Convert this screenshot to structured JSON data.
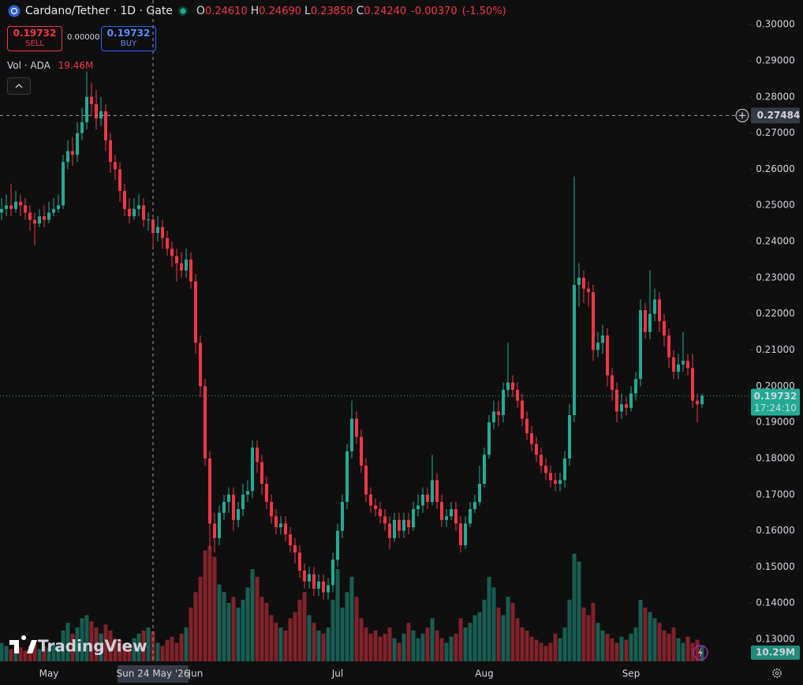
{
  "chart_data": {
    "type": "candlestick",
    "title": "Cardano/Tether · 1D · Gate",
    "legend": [
      {
        "key": "O",
        "value": 0.2461,
        "label": "0.24610"
      },
      {
        "key": "H",
        "value": 0.2469,
        "label": "0.24690"
      },
      {
        "key": "L",
        "value": 0.2385,
        "label": "0.23850"
      },
      {
        "key": "C",
        "value": 0.2424,
        "label": "0.24240"
      }
    ],
    "change": {
      "value": -0.0037,
      "label": "-0.00370"
    },
    "change_pct": {
      "value": -1.5,
      "label": "(-1.50%)"
    },
    "sell": {
      "price": "0.19732",
      "label": "SELL"
    },
    "spread": "0.00000",
    "buy": {
      "price": "0.19732",
      "label": "BUY"
    },
    "volume_legend": {
      "name": "Vol · ADA",
      "label": "19.46M"
    },
    "last_price_label": "0.19732",
    "countdown": "17:24:10",
    "last_volume_label": "10.29M",
    "brand": "TradingView",
    "crosshair": {
      "price": {
        "value": 0.27484,
        "label": "0.27484"
      },
      "date_label": "Sun 24 May '26"
    },
    "up_color": "#22ab94",
    "down_color": "#f23645",
    "ylim": [
      0.1239,
      0.3068
    ],
    "volume_ylim": [
      0,
      430
    ],
    "yticks": [
      {
        "value": 0.3,
        "label": "0.30000"
      },
      {
        "value": 0.29,
        "label": "0.29000"
      },
      {
        "value": 0.28,
        "label": "0.28000"
      },
      {
        "value": 0.27,
        "label": "0.27000"
      },
      {
        "value": 0.26,
        "label": "0.26000"
      },
      {
        "value": 0.25,
        "label": "0.25000"
      },
      {
        "value": 0.24,
        "label": "0.24000"
      },
      {
        "value": 0.23,
        "label": "0.23000"
      },
      {
        "value": 0.22,
        "label": "0.22000"
      },
      {
        "value": 0.21,
        "label": "0.21000"
      },
      {
        "value": 0.2,
        "label": "0.20000"
      },
      {
        "value": 0.19,
        "label": "0.19000"
      },
      {
        "value": 0.18,
        "label": "0.18000"
      },
      {
        "value": 0.17,
        "label": "0.17000"
      },
      {
        "value": 0.16,
        "label": "0.16000"
      },
      {
        "value": 0.15,
        "label": "0.15000"
      },
      {
        "value": 0.14,
        "label": "0.14000"
      },
      {
        "value": 0.13,
        "label": "0.13000"
      }
    ],
    "categories": [
      null,
      null,
      null,
      null,
      null,
      null,
      null,
      null,
      null,
      "May",
      null,
      null,
      null,
      null,
      null,
      null,
      null,
      null,
      null,
      null,
      null,
      null,
      null,
      null,
      null,
      null,
      null,
      null,
      null,
      null,
      null,
      null,
      null,
      null,
      null,
      null,
      null,
      null,
      null,
      null,
      "Jun",
      null,
      null,
      null,
      null,
      null,
      null,
      null,
      null,
      null,
      null,
      null,
      null,
      null,
      null,
      null,
      null,
      null,
      null,
      null,
      null,
      null,
      null,
      null,
      null,
      null,
      null,
      null,
      null,
      null,
      "Jul",
      null,
      null,
      null,
      null,
      null,
      null,
      null,
      null,
      null,
      null,
      null,
      null,
      null,
      null,
      null,
      null,
      null,
      null,
      null,
      null,
      null,
      null,
      null,
      null,
      null,
      null,
      null,
      null,
      null,
      null,
      "Aug",
      null,
      null,
      null,
      null,
      null,
      null,
      null,
      null,
      null,
      null,
      null,
      null,
      null,
      null,
      null,
      null,
      null,
      null,
      null,
      null,
      null,
      null,
      null,
      null,
      null,
      null,
      null,
      null,
      null,
      null,
      "Sep",
      null,
      null,
      null,
      null,
      null,
      null,
      null,
      null,
      null,
      null,
      null,
      null,
      null,
      null,
      null,
      null
    ],
    "open": [
      0.248,
      0.249,
      0.25,
      0.249,
      0.251,
      0.25,
      0.248,
      0.246,
      0.245,
      0.247,
      0.246,
      0.248,
      0.249,
      0.25,
      0.262,
      0.265,
      0.264,
      0.27,
      0.273,
      0.28,
      0.278,
      0.274,
      0.276,
      0.268,
      0.262,
      0.26,
      0.254,
      0.249,
      0.247,
      0.249,
      0.25,
      0.246,
      0.2461,
      0.2424,
      0.244,
      0.241,
      0.238,
      0.236,
      0.234,
      0.232,
      0.235,
      0.229,
      0.212,
      0.2,
      0.18,
      0.162,
      0.158,
      0.165,
      0.168,
      0.17,
      0.163,
      0.166,
      0.17,
      0.171,
      0.183,
      0.179,
      0.173,
      0.168,
      0.164,
      0.161,
      0.162,
      0.159,
      0.156,
      0.154,
      0.149,
      0.146,
      0.148,
      0.144,
      0.146,
      0.143,
      0.145,
      0.152,
      0.16,
      0.168,
      0.182,
      0.191,
      0.186,
      0.178,
      0.17,
      0.167,
      0.166,
      0.164,
      0.162,
      0.158,
      0.163,
      0.16,
      0.163,
      0.161,
      0.166,
      0.167,
      0.17,
      0.168,
      0.174,
      0.168,
      0.163,
      0.164,
      0.166,
      0.162,
      0.156,
      0.162,
      0.166,
      0.168,
      0.173,
      0.181,
      0.19,
      0.193,
      0.192,
      0.199,
      0.201,
      0.199,
      0.196,
      0.191,
      0.187,
      0.184,
      0.181,
      0.178,
      0.176,
      0.174,
      0.173,
      0.174,
      0.18,
      0.192,
      0.228,
      0.23,
      0.227,
      0.226,
      0.21,
      0.212,
      0.214,
      0.203,
      0.199,
      0.193,
      0.195,
      0.194,
      0.198,
      0.202,
      0.221,
      0.215,
      0.22,
      0.224,
      0.218,
      0.214,
      0.208,
      0.204,
      0.206,
      0.207,
      0.205,
      0.196,
      0.195
    ],
    "high": [
      0.252,
      0.253,
      0.256,
      0.254,
      0.253,
      0.252,
      0.25,
      0.248,
      0.249,
      0.25,
      0.251,
      0.252,
      0.253,
      0.264,
      0.268,
      0.269,
      0.273,
      0.277,
      0.287,
      0.284,
      0.282,
      0.28,
      0.278,
      0.27,
      0.264,
      0.262,
      0.256,
      0.252,
      0.252,
      0.253,
      0.252,
      0.248,
      0.2469,
      0.247,
      0.246,
      0.243,
      0.24,
      0.238,
      0.237,
      0.238,
      0.237,
      0.231,
      0.214,
      0.202,
      0.182,
      0.165,
      0.167,
      0.17,
      0.172,
      0.172,
      0.168,
      0.173,
      0.174,
      0.185,
      0.185,
      0.181,
      0.175,
      0.17,
      0.166,
      0.164,
      0.164,
      0.161,
      0.158,
      0.156,
      0.151,
      0.15,
      0.15,
      0.148,
      0.148,
      0.147,
      0.154,
      0.162,
      0.17,
      0.184,
      0.196,
      0.193,
      0.188,
      0.18,
      0.172,
      0.169,
      0.168,
      0.166,
      0.164,
      0.165,
      0.165,
      0.165,
      0.165,
      0.168,
      0.17,
      0.172,
      0.172,
      0.181,
      0.176,
      0.17,
      0.166,
      0.168,
      0.168,
      0.164,
      0.164,
      0.168,
      0.17,
      0.178,
      0.183,
      0.192,
      0.196,
      0.196,
      0.201,
      0.212,
      0.203,
      0.201,
      0.198,
      0.193,
      0.189,
      0.186,
      0.183,
      0.18,
      0.178,
      0.176,
      0.176,
      0.182,
      0.195,
      0.258,
      0.234,
      0.232,
      0.229,
      0.228,
      0.215,
      0.217,
      0.216,
      0.205,
      0.201,
      0.198,
      0.197,
      0.2,
      0.204,
      0.224,
      0.223,
      0.232,
      0.227,
      0.226,
      0.22,
      0.216,
      0.21,
      0.209,
      0.215,
      0.209,
      0.209,
      0.198,
      0.198
    ],
    "low": [
      0.246,
      0.247,
      0.247,
      0.248,
      0.247,
      0.246,
      0.243,
      0.239,
      0.244,
      0.244,
      0.245,
      0.247,
      0.248,
      0.249,
      0.26,
      0.261,
      0.262,
      0.268,
      0.271,
      0.275,
      0.271,
      0.272,
      0.265,
      0.259,
      0.257,
      0.251,
      0.247,
      0.245,
      0.246,
      0.247,
      0.244,
      0.243,
      0.2385,
      0.24,
      0.238,
      0.236,
      0.233,
      0.229,
      0.23,
      0.23,
      0.227,
      0.209,
      0.197,
      0.178,
      0.155,
      0.154,
      0.156,
      0.163,
      0.165,
      0.16,
      0.161,
      0.164,
      0.168,
      0.169,
      0.176,
      0.17,
      0.166,
      0.162,
      0.159,
      0.159,
      0.157,
      0.154,
      0.151,
      0.147,
      0.144,
      0.144,
      0.142,
      0.142,
      0.141,
      0.141,
      0.143,
      0.15,
      0.158,
      0.166,
      0.18,
      0.184,
      0.176,
      0.168,
      0.165,
      0.164,
      0.162,
      0.16,
      0.155,
      0.157,
      0.158,
      0.158,
      0.159,
      0.16,
      0.164,
      0.165,
      0.166,
      0.167,
      0.166,
      0.161,
      0.161,
      0.163,
      0.16,
      0.154,
      0.155,
      0.161,
      0.165,
      0.167,
      0.172,
      0.18,
      0.188,
      0.189,
      0.19,
      0.197,
      0.197,
      0.194,
      0.189,
      0.185,
      0.182,
      0.179,
      0.176,
      0.174,
      0.172,
      0.171,
      0.171,
      0.172,
      0.178,
      0.19,
      0.222,
      0.223,
      0.222,
      0.207,
      0.208,
      0.209,
      0.2,
      0.196,
      0.19,
      0.191,
      0.192,
      0.193,
      0.196,
      0.2,
      0.213,
      0.213,
      0.218,
      0.215,
      0.211,
      0.205,
      0.202,
      0.202,
      0.204,
      0.203,
      0.194,
      0.19,
      0.194
    ],
    "close": [
      0.249,
      0.25,
      0.249,
      0.251,
      0.25,
      0.248,
      0.246,
      0.245,
      0.247,
      0.246,
      0.248,
      0.249,
      0.25,
      0.262,
      0.265,
      0.264,
      0.27,
      0.273,
      0.28,
      0.278,
      0.274,
      0.276,
      0.268,
      0.262,
      0.26,
      0.254,
      0.249,
      0.247,
      0.249,
      0.25,
      0.246,
      0.2461,
      0.2424,
      0.244,
      0.241,
      0.238,
      0.236,
      0.234,
      0.232,
      0.235,
      0.229,
      0.212,
      0.2,
      0.18,
      0.162,
      0.158,
      0.165,
      0.168,
      0.17,
      0.163,
      0.166,
      0.17,
      0.171,
      0.183,
      0.179,
      0.173,
      0.168,
      0.164,
      0.161,
      0.162,
      0.159,
      0.156,
      0.154,
      0.149,
      0.146,
      0.148,
      0.144,
      0.146,
      0.143,
      0.145,
      0.152,
      0.16,
      0.168,
      0.182,
      0.191,
      0.186,
      0.178,
      0.17,
      0.167,
      0.166,
      0.164,
      0.162,
      0.158,
      0.163,
      0.16,
      0.163,
      0.161,
      0.166,
      0.167,
      0.17,
      0.168,
      0.174,
      0.168,
      0.163,
      0.164,
      0.166,
      0.162,
      0.156,
      0.162,
      0.166,
      0.168,
      0.173,
      0.181,
      0.19,
      0.193,
      0.192,
      0.199,
      0.201,
      0.199,
      0.196,
      0.191,
      0.187,
      0.184,
      0.181,
      0.178,
      0.176,
      0.174,
      0.173,
      0.174,
      0.18,
      0.192,
      0.228,
      0.23,
      0.227,
      0.226,
      0.21,
      0.212,
      0.214,
      0.203,
      0.199,
      0.193,
      0.195,
      0.194,
      0.198,
      0.202,
      0.221,
      0.215,
      0.22,
      0.224,
      0.218,
      0.214,
      0.208,
      0.204,
      0.206,
      0.207,
      0.205,
      0.196,
      0.195,
      0.19732
    ],
    "volume": [
      12,
      10,
      8,
      11,
      9,
      7,
      10,
      12,
      8,
      10,
      9,
      11,
      9,
      20,
      25,
      18,
      22,
      28,
      30,
      26,
      22,
      18,
      24,
      20,
      15,
      14,
      12,
      10,
      15,
      18,
      20,
      22,
      19.46,
      12,
      10,
      14,
      16,
      12,
      18,
      22,
      35,
      45,
      55,
      72,
      75,
      68,
      50,
      45,
      38,
      42,
      35,
      40,
      48,
      60,
      55,
      42,
      38,
      30,
      25,
      22,
      20,
      28,
      32,
      40,
      45,
      30,
      25,
      20,
      18,
      22,
      40,
      60,
      35,
      45,
      55,
      42,
      28,
      22,
      18,
      20,
      16,
      18,
      22,
      15,
      12,
      18,
      25,
      20,
      15,
      18,
      22,
      28,
      20,
      15,
      12,
      16,
      18,
      28,
      22,
      25,
      30,
      32,
      40,
      55,
      48,
      35,
      30,
      42,
      38,
      28,
      22,
      20,
      16,
      14,
      12,
      10,
      12,
      18,
      15,
      22,
      40,
      70,
      65,
      35,
      30,
      38,
      25,
      20,
      18,
      15,
      12,
      16,
      14,
      18,
      22,
      40,
      35,
      32,
      28,
      25,
      20,
      18,
      22,
      15,
      12,
      16,
      12,
      14,
      10.29
    ]
  }
}
